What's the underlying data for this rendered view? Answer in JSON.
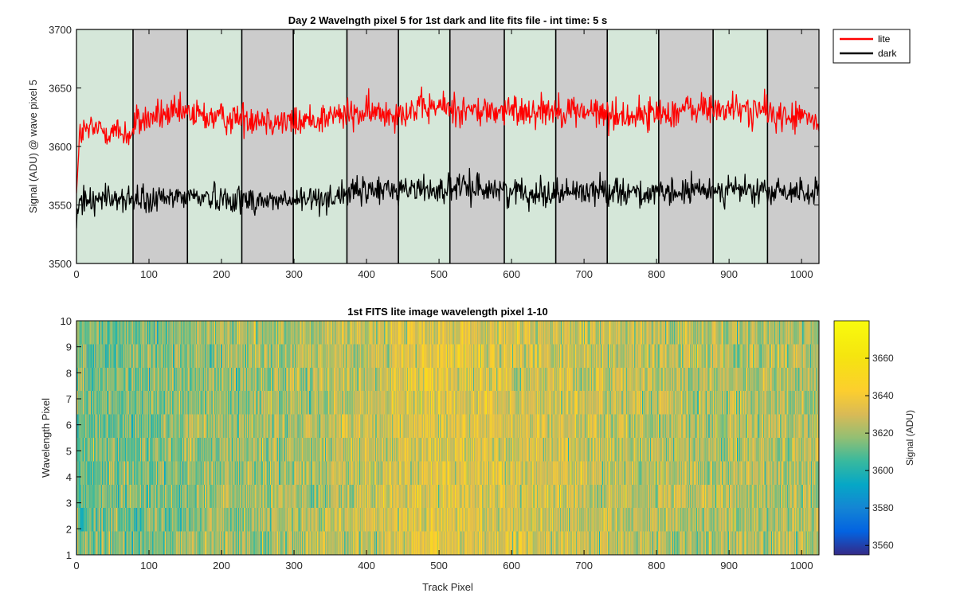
{
  "chart_data": [
    {
      "type": "line",
      "title": "Day 2 Wavelngth pixel 5 for 1st dark and lite fits file - int time: 5 s",
      "xlabel": "",
      "ylabel": "Signal (ADU) @ wave pixel 5",
      "xlim": [
        0,
        1024
      ],
      "ylim": [
        3500,
        3700
      ],
      "xticks": [
        0,
        100,
        200,
        300,
        400,
        500,
        600,
        700,
        800,
        900,
        1000
      ],
      "yticks": [
        3500,
        3550,
        3600,
        3650,
        3700
      ],
      "grid": false,
      "legend_position": "outside-top-right",
      "background_band_boundaries": [
        0,
        78,
        153,
        228,
        299,
        373,
        444,
        515,
        590,
        661,
        732,
        803,
        878,
        953,
        1024
      ],
      "background_band_colors": [
        "#d5e7d9",
        "#cccccc"
      ],
      "series": [
        {
          "name": "lite",
          "color": "#ff0000",
          "knots_x": [
            0,
            5,
            30,
            60,
            78,
            80,
            110,
            150,
            200,
            250,
            300,
            350,
            400,
            450,
            500,
            550,
            600,
            650,
            700,
            750,
            800,
            850,
            900,
            950,
            980,
            1000,
            1024
          ],
          "knots_y": [
            3560,
            3612,
            3615,
            3612,
            3610,
            3620,
            3626,
            3628,
            3624,
            3625,
            3620,
            3626,
            3628,
            3630,
            3634,
            3630,
            3630,
            3632,
            3630,
            3626,
            3628,
            3632,
            3632,
            3630,
            3624,
            3626,
            3620
          ],
          "noise_sd": 7
        },
        {
          "name": "dark",
          "color": "#000000",
          "knots_x": [
            0,
            5,
            50,
            100,
            150,
            200,
            250,
            300,
            350,
            400,
            450,
            500,
            550,
            600,
            650,
            700,
            750,
            800,
            850,
            900,
            950,
            1000,
            1024
          ],
          "knots_y": [
            3530,
            3555,
            3556,
            3553,
            3558,
            3556,
            3554,
            3553,
            3557,
            3562,
            3564,
            3563,
            3565,
            3562,
            3560,
            3562,
            3563,
            3558,
            3562,
            3564,
            3560,
            3562,
            3560
          ],
          "noise_sd": 6
        }
      ]
    },
    {
      "type": "heatmap",
      "title": "1st FITS lite image wavelength pixel 1-10",
      "xlabel": "Track Pixel",
      "ylabel": "Wavelength Pixel",
      "colorbar_label": "Signal (ADU)",
      "xlim": [
        0,
        1024
      ],
      "ylim": [
        1,
        10
      ],
      "xticks": [
        0,
        100,
        200,
        300,
        400,
        500,
        600,
        700,
        800,
        900,
        1000
      ],
      "yticks": [
        1,
        2,
        3,
        4,
        5,
        6,
        7,
        8,
        9,
        10
      ],
      "colorbar_ticks": [
        3560,
        3580,
        3600,
        3620,
        3640,
        3660
      ],
      "clim": [
        3555,
        3680
      ],
      "colormap": "parula",
      "rows": 10,
      "columns": 1024,
      "column_profile_x": [
        0,
        100,
        200,
        300,
        400,
        500,
        600,
        700,
        800,
        900,
        1024
      ],
      "column_profile_mean": [
        3612,
        3616,
        3620,
        3622,
        3628,
        3634,
        3631,
        3628,
        3625,
        3624,
        3622
      ],
      "noise_sd": 10
    }
  ]
}
